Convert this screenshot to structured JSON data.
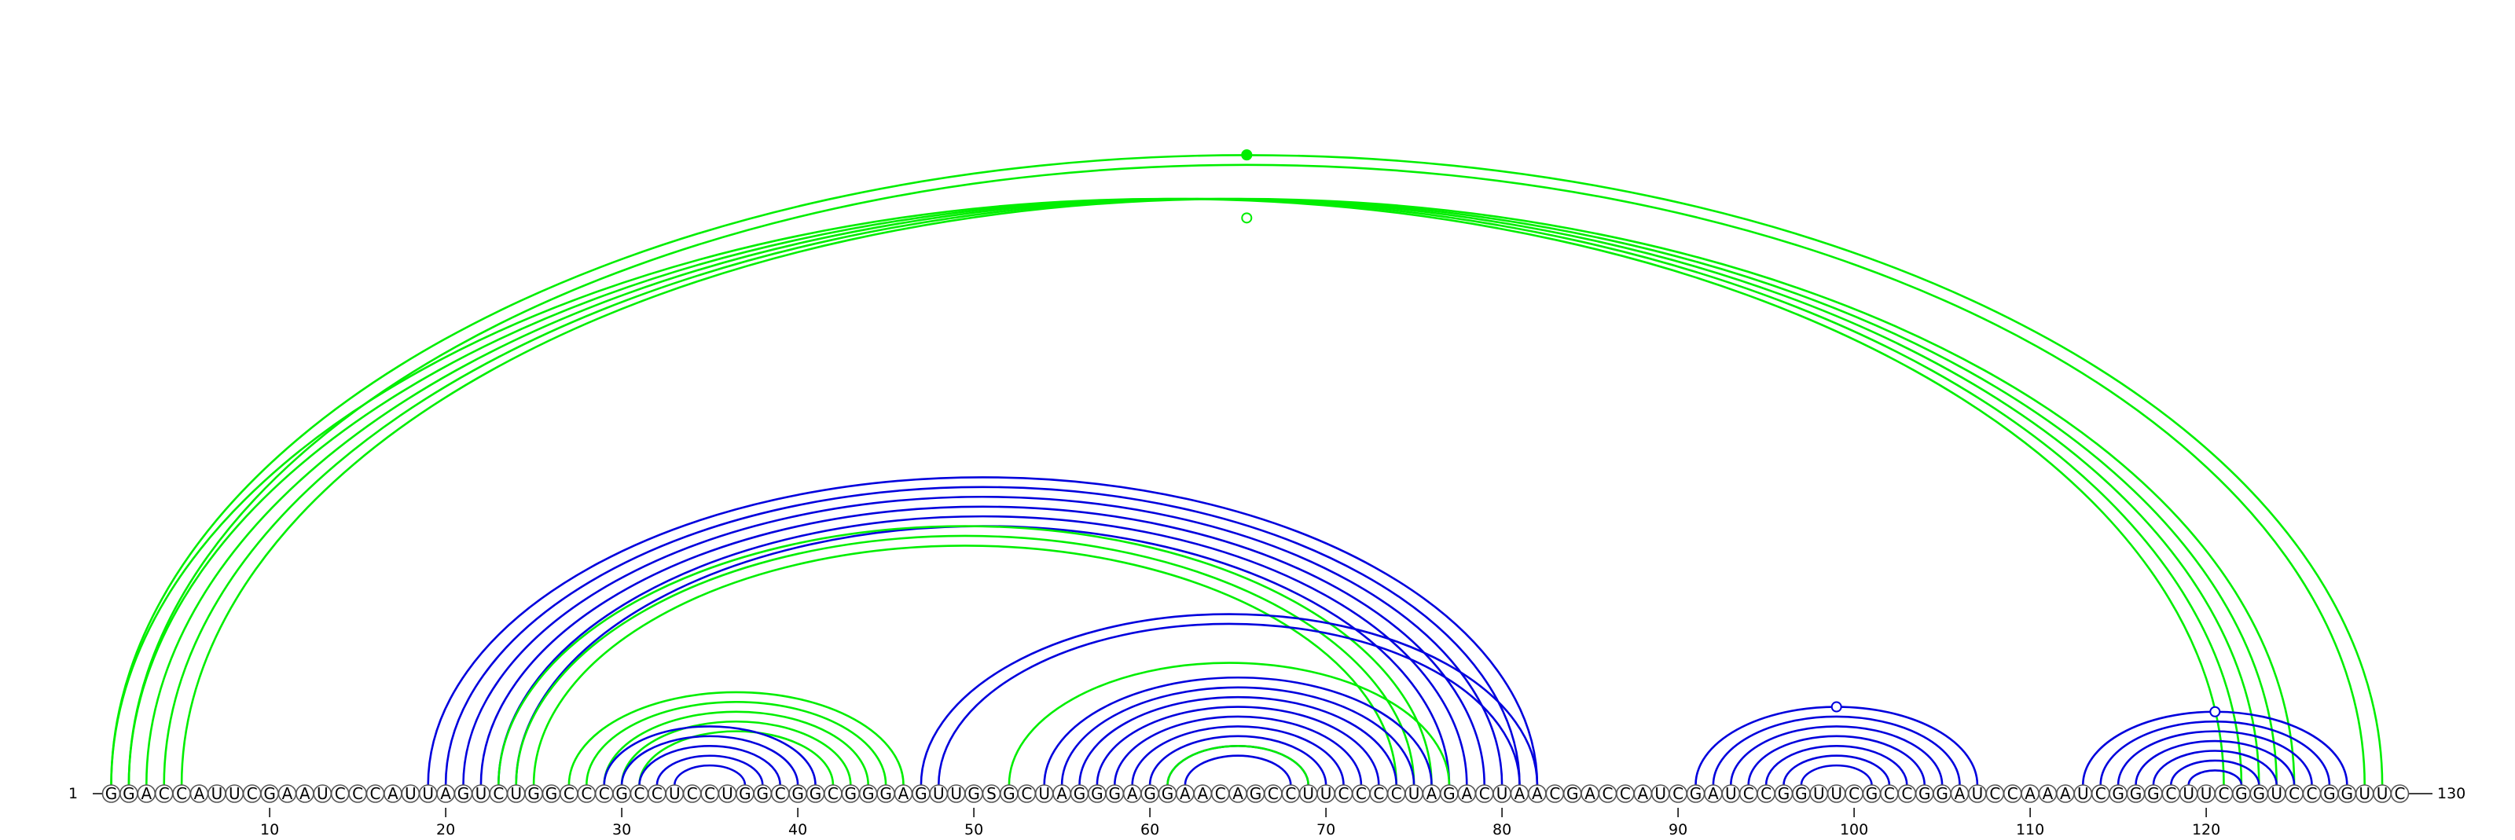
{
  "sequence": "GGACCAUUCGAAUCCCAUUAGUCUGGCCCGCCUCCUGGCGGCGGGAGUUGSGCUAGGGAGGAACAGCCUUCCCCUAGACUAACGACCAUCGAUCCGGUUCGCCGGAUCCAAAUCGGGCUUCGGUCCGGUUC",
  "start_label": "1",
  "end_label": "130",
  "ticks": [
    "10",
    "20",
    "30",
    "40",
    "50",
    "60",
    "70",
    "80",
    "90",
    "100",
    "110",
    "120"
  ],
  "tick_positions": [
    10,
    20,
    30,
    40,
    50,
    60,
    70,
    80,
    90,
    100,
    110,
    120
  ],
  "colors": {
    "green": "#00ee00",
    "blue": "#0000dd"
  },
  "helices": [
    {
      "color": "green",
      "pairs": [
        [
          1,
          121
        ],
        [
          2,
          122
        ],
        [
          3,
          123
        ],
        [
          4,
          124
        ],
        [
          5,
          125
        ]
      ]
    },
    {
      "color": "green",
      "pairs": [
        [
          1,
          130
        ],
        [
          2,
          129
        ]
      ]
    },
    {
      "color": "blue",
      "pairs": [
        [
          19,
          82
        ],
        [
          20,
          81
        ],
        [
          21,
          80
        ],
        [
          22,
          79
        ],
        [
          23,
          78
        ],
        [
          24,
          77
        ]
      ]
    },
    {
      "color": "green",
      "pairs": [
        [
          23,
          76
        ],
        [
          24,
          75
        ],
        [
          25,
          74
        ]
      ]
    },
    {
      "color": "green",
      "pairs": [
        [
          27,
          46
        ],
        [
          28,
          45
        ],
        [
          29,
          44
        ],
        [
          30,
          43
        ],
        [
          31,
          42
        ]
      ]
    },
    {
      "color": "blue",
      "pairs": [
        [
          29,
          41
        ],
        [
          30,
          40
        ],
        [
          31,
          39
        ],
        [
          32,
          38
        ],
        [
          33,
          37
        ]
      ]
    },
    {
      "color": "blue",
      "pairs": [
        [
          47,
          82
        ],
        [
          48,
          81
        ]
      ]
    },
    {
      "color": "green",
      "pairs": [
        [
          52,
          77
        ]
      ]
    },
    {
      "color": "blue",
      "pairs": [
        [
          54,
          76
        ],
        [
          55,
          75
        ],
        [
          56,
          74
        ],
        [
          57,
          73
        ],
        [
          58,
          72
        ],
        [
          59,
          71
        ],
        [
          60,
          70
        ],
        [
          61,
          69
        ],
        [
          62,
          68
        ]
      ]
    },
    {
      "color": "green",
      "pairs": [
        [
          61,
          69
        ]
      ]
    },
    {
      "color": "blue",
      "pairs": [
        [
          91,
          107
        ],
        [
          92,
          106
        ],
        [
          93,
          105
        ],
        [
          94,
          104
        ],
        [
          95,
          103
        ],
        [
          96,
          102
        ],
        [
          97,
          101
        ]
      ]
    },
    {
      "color": "blue",
      "pairs": [
        [
          113,
          128
        ],
        [
          114,
          127
        ],
        [
          115,
          126
        ],
        [
          116,
          125
        ],
        [
          117,
          124
        ],
        [
          118,
          123
        ],
        [
          119,
          122
        ]
      ]
    }
  ],
  "pseudo_markers": [
    {
      "color": "green",
      "pos": 65.0,
      "height_ratio": 1.0,
      "filled": false
    },
    {
      "color": "green",
      "pos": 64.5,
      "height_ratio": 1.0,
      "filled": true
    },
    {
      "color": "green",
      "pos": 65.0,
      "height_ratio": 0.9,
      "filled": false
    },
    {
      "color": "blue",
      "pos": 99.0,
      "height_ratio": 1.0,
      "filled": false
    },
    {
      "color": "blue",
      "pos": 120.5,
      "height_ratio": 1.0,
      "filled": false
    }
  ]
}
